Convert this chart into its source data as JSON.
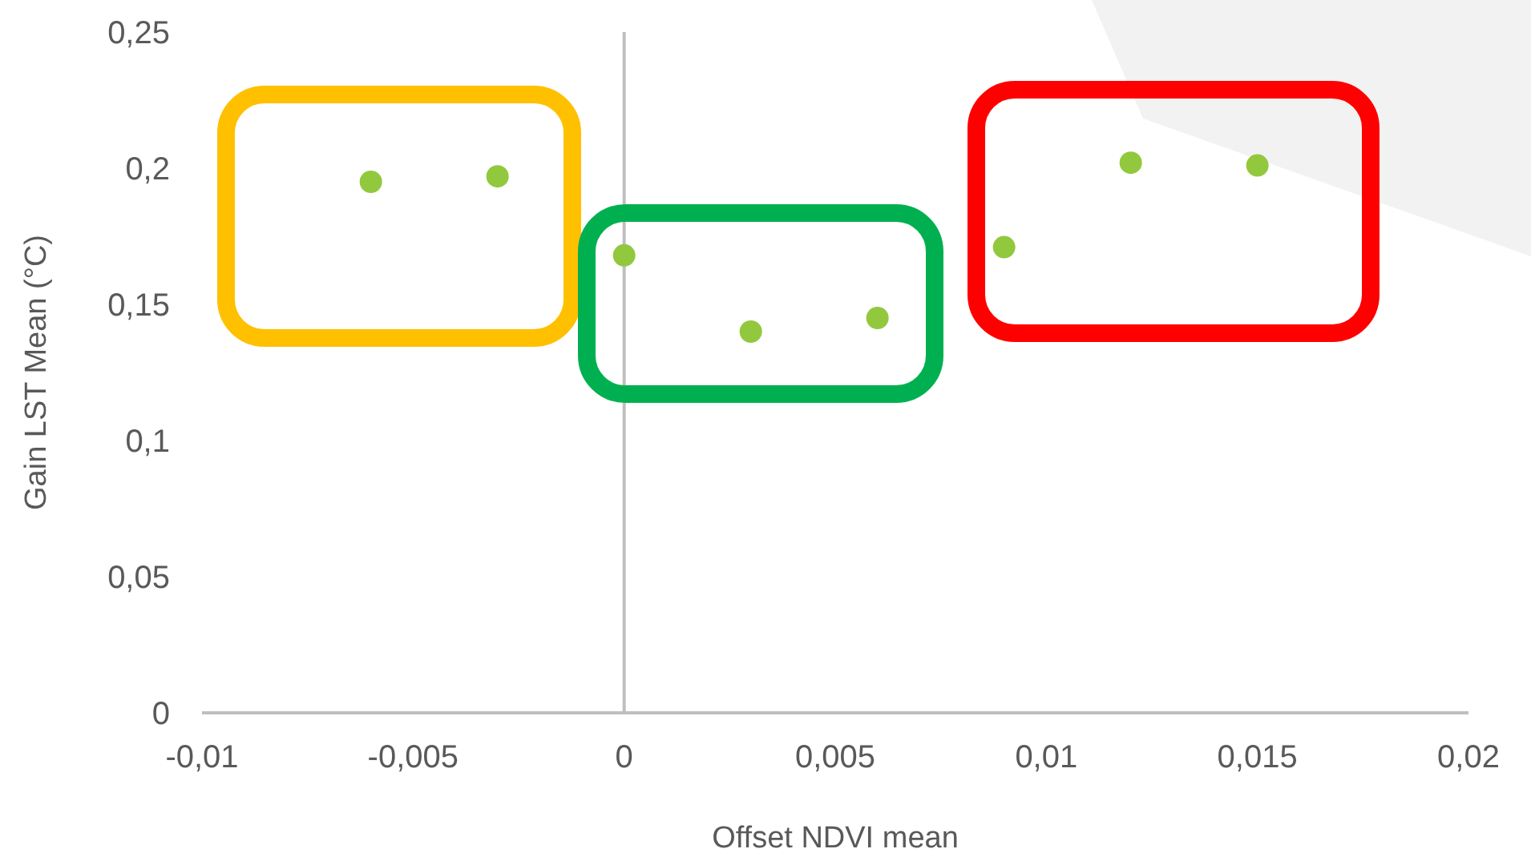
{
  "chart_data": {
    "type": "scatter",
    "xlabel": "Offset NDVI mean",
    "ylabel": "Gain LST Mean (°C)",
    "x": [
      -0.006,
      -0.003,
      0,
      0.003,
      0.006,
      0.009,
      0.012,
      0.015
    ],
    "series": [
      {
        "color": "#92c83e",
        "values": [
          0.195,
          0.197,
          0.168,
          0.14,
          0.145,
          0.171,
          0.202,
          0.201
        ]
      }
    ],
    "xlim": [
      -0.01,
      0.02
    ],
    "xticks": [
      {
        "value": -0.01,
        "label": "-0,01"
      },
      {
        "value": -0.005,
        "label": "-0,005"
      },
      0,
      {
        "value": 0.005,
        "label": "0,005"
      },
      {
        "value": 0.01,
        "label": "0,01"
      },
      {
        "value": 0.015,
        "label": "0,015"
      },
      {
        "value": 0.02,
        "label": "0,02"
      }
    ],
    "ylim": [
      0,
      0.25
    ],
    "yticks": [
      0,
      {
        "value": 0.05,
        "label": "0,05"
      },
      {
        "value": 0.1,
        "label": "0,1"
      },
      {
        "value": 0.15,
        "label": "0,15"
      },
      {
        "value": 0.2,
        "label": "0,2"
      },
      {
        "value": 0.25,
        "label": "0,25"
      }
    ],
    "marker": "circle"
  }
}
